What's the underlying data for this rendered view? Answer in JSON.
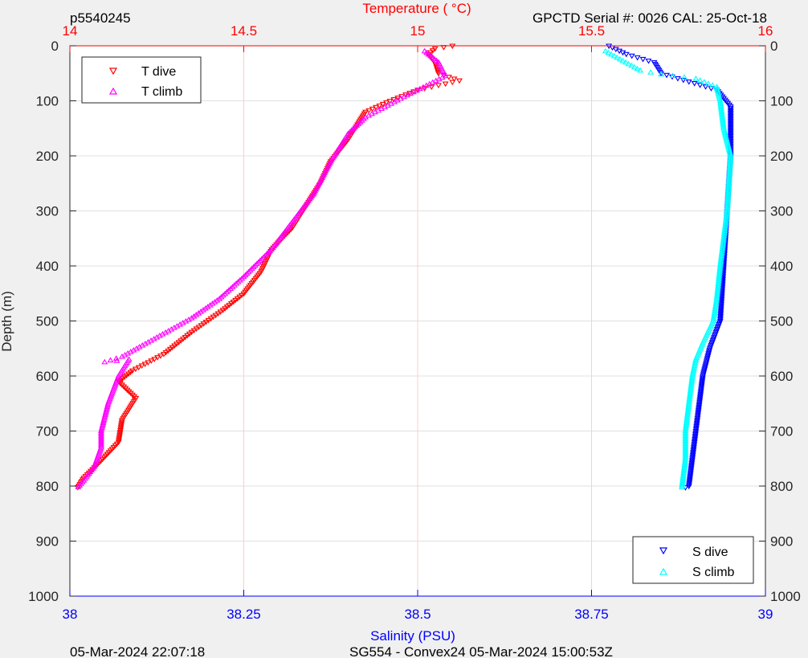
{
  "header": {
    "profile_id": "p5540245",
    "instrument": "GPCTD Serial #: 0026 CAL: 25-Oct-18"
  },
  "footer": {
    "plot_time": "05-Mar-2024 22:07:18",
    "mission": "SG554 - Convex24 05-Mar-2024 15:00:53Z"
  },
  "colors": {
    "t_dive": "#ff0000",
    "t_climb": "#ff00ff",
    "s_dive": "#0000ff",
    "s_climb": "#00ffff",
    "temp_axis": "#ff0000",
    "sal_axis": "#0000ff",
    "temp_grid": "#ffcccc",
    "depth_grid": "#e0e0e0"
  },
  "chart_data": {
    "type": "scatter",
    "ylabel": "Depth (m)",
    "ylim": [
      0,
      1000
    ],
    "yticks": [
      "0",
      "100",
      "200",
      "300",
      "400",
      "500",
      "600",
      "700",
      "800",
      "900",
      "1000"
    ],
    "y_reversed": true,
    "top_axis": {
      "label": "Temperature (    °C)",
      "lim": [
        14,
        16
      ],
      "ticks": [
        "14",
        "14.5",
        "15",
        "15.5",
        "16"
      ]
    },
    "bottom_axis": {
      "label": "Salinity (PSU)",
      "lim": [
        38,
        39
      ],
      "ticks": [
        "38",
        "38.25",
        "38.5",
        "38.75",
        "39"
      ]
    },
    "legends": {
      "temperature": {
        "position": "top-left",
        "entries": [
          "T dive",
          "T climb"
        ]
      },
      "salinity": {
        "position": "bottom-right",
        "entries": [
          "S dive",
          "S climb"
        ]
      }
    },
    "series": [
      {
        "name": "T dive",
        "axis": "temperature",
        "marker": "triangle-down",
        "points": [
          [
            15.1,
            0
          ],
          [
            15.05,
            5
          ],
          [
            15.03,
            15
          ],
          [
            15.05,
            30
          ],
          [
            15.06,
            50
          ],
          [
            15.12,
            63
          ],
          [
            15.0,
            80
          ],
          [
            14.92,
            100
          ],
          [
            14.85,
            120
          ],
          [
            14.83,
            140
          ],
          [
            14.8,
            170
          ],
          [
            14.75,
            210
          ],
          [
            14.72,
            250
          ],
          [
            14.68,
            290
          ],
          [
            14.64,
            330
          ],
          [
            14.58,
            370
          ],
          [
            14.55,
            410
          ],
          [
            14.5,
            450
          ],
          [
            14.44,
            480
          ],
          [
            14.35,
            520
          ],
          [
            14.27,
            560
          ],
          [
            14.18,
            590
          ],
          [
            14.14,
            610
          ],
          [
            14.19,
            640
          ],
          [
            14.15,
            680
          ],
          [
            14.14,
            720
          ],
          [
            14.08,
            760
          ],
          [
            14.04,
            785
          ],
          [
            14.02,
            805
          ]
        ]
      },
      {
        "name": "T climb",
        "axis": "temperature",
        "marker": "triangle-up",
        "points": [
          [
            15.02,
            10
          ],
          [
            15.06,
            30
          ],
          [
            15.08,
            55
          ],
          [
            14.97,
            90
          ],
          [
            14.85,
            130
          ],
          [
            14.8,
            160
          ],
          [
            14.75,
            210
          ],
          [
            14.7,
            270
          ],
          [
            14.64,
            320
          ],
          [
            14.58,
            370
          ],
          [
            14.5,
            420
          ],
          [
            14.43,
            460
          ],
          [
            14.35,
            495
          ],
          [
            14.25,
            530
          ],
          [
            14.15,
            565
          ],
          [
            14.1,
            575
          ],
          [
            14.17,
            570
          ],
          [
            14.14,
            600
          ],
          [
            14.11,
            650
          ],
          [
            14.09,
            700
          ],
          [
            14.09,
            730
          ],
          [
            14.07,
            765
          ],
          [
            14.04,
            790
          ],
          [
            14.02,
            805
          ]
        ]
      },
      {
        "name": "S dive",
        "axis": "salinity",
        "marker": "triangle-down",
        "points": [
          [
            38.775,
            0
          ],
          [
            38.8,
            15
          ],
          [
            38.84,
            30
          ],
          [
            38.85,
            50
          ],
          [
            38.89,
            65
          ],
          [
            38.93,
            80
          ],
          [
            38.95,
            110
          ],
          [
            38.95,
            140
          ],
          [
            38.95,
            200
          ],
          [
            38.945,
            300
          ],
          [
            38.94,
            400
          ],
          [
            38.935,
            500
          ],
          [
            38.92,
            550
          ],
          [
            38.91,
            600
          ],
          [
            38.905,
            650
          ],
          [
            38.9,
            700
          ],
          [
            38.895,
            750
          ],
          [
            38.89,
            800
          ],
          [
            38.88,
            805
          ]
        ]
      },
      {
        "name": "S climb",
        "axis": "salinity",
        "marker": "triangle-up",
        "points": [
          [
            38.77,
            10
          ],
          [
            38.82,
            45
          ],
          [
            38.85,
            52
          ],
          [
            38.9,
            60
          ],
          [
            38.93,
            75
          ],
          [
            38.935,
            100
          ],
          [
            38.94,
            150
          ],
          [
            38.95,
            200
          ],
          [
            38.945,
            300
          ],
          [
            38.935,
            400
          ],
          [
            38.93,
            460
          ],
          [
            38.925,
            500
          ],
          [
            38.91,
            540
          ],
          [
            38.9,
            570
          ],
          [
            38.895,
            600
          ],
          [
            38.89,
            650
          ],
          [
            38.885,
            700
          ],
          [
            38.885,
            750
          ],
          [
            38.88,
            800
          ],
          [
            38.88,
            805
          ]
        ]
      }
    ]
  }
}
